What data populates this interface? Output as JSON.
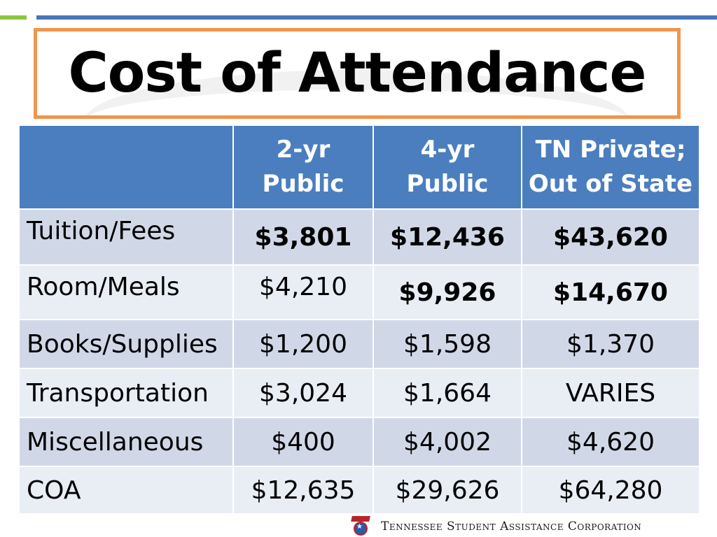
{
  "title": "Cost of Attendance",
  "table": {
    "headers": [
      {
        "line1": "",
        "line2": ""
      },
      {
        "line1": "2-yr",
        "line2": "Public"
      },
      {
        "line1": "4-yr",
        "line2": "Public"
      },
      {
        "line1": "TN Private;",
        "line2": "Out of State"
      }
    ],
    "rows": [
      {
        "label": "Tuition/Fees",
        "values": [
          "$3,801",
          "$12,436",
          "$43,620"
        ]
      },
      {
        "label": "Room/Meals",
        "values": [
          "$4,210",
          "$9,926",
          "$14,670"
        ]
      },
      {
        "label": "Books/Supplies",
        "values": [
          "$1,200",
          "$1,598",
          "$1,370"
        ]
      },
      {
        "label": "Transportation",
        "values": [
          "$3,024",
          "$1,664",
          "VARIES"
        ]
      },
      {
        "label": "Miscellaneous",
        "values": [
          "$400",
          "$4,002",
          "$4,620"
        ]
      },
      {
        "label": "COA",
        "values": [
          "$12,635",
          "$29,626",
          "$64,280"
        ]
      }
    ]
  },
  "footer": {
    "organization": "Tennessee Student Assistance Corporation",
    "logo_icon": "tsac-logo-icon"
  },
  "colors": {
    "header_blue": "#4a7ebf",
    "row_dark": "#d0d8e8",
    "row_light": "#e9edf4",
    "title_border": "#f0954b",
    "accent_green": "#8dc63f",
    "accent_blue": "#4a76b8"
  }
}
